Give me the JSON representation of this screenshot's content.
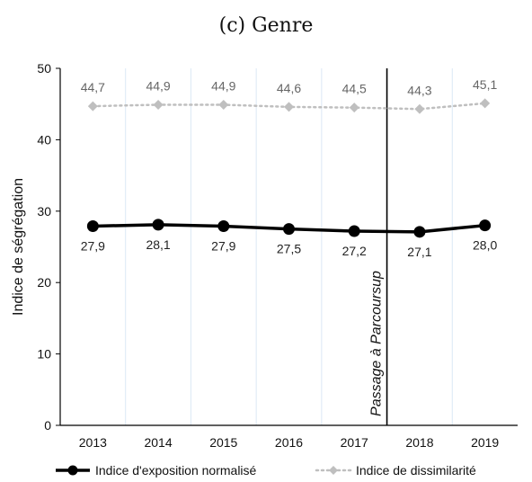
{
  "title": "(c) Genre",
  "chart_data": {
    "type": "line",
    "categories": [
      "2013",
      "2014",
      "2015",
      "2016",
      "2017",
      "2018",
      "2019"
    ],
    "ylabel": "Indice de ségrégation",
    "ylim": [
      0,
      50
    ],
    "yticks": [
      "0",
      "10",
      "20",
      "30",
      "40",
      "50"
    ],
    "grid": "vertical",
    "series": [
      {
        "name": "Indice d'exposition normalisé",
        "values": [
          27.9,
          28.1,
          27.9,
          27.5,
          27.2,
          27.1,
          28.0
        ],
        "labels": [
          "27,9",
          "28,1",
          "27,9",
          "27,5",
          "27,2",
          "27,1",
          "28,0"
        ],
        "color": "#000000",
        "style": "solid"
      },
      {
        "name": "Indice de dissimilarité",
        "values": [
          44.7,
          44.9,
          44.9,
          44.6,
          44.5,
          44.3,
          45.1
        ],
        "labels": [
          "44,7",
          "44,9",
          "44,9",
          "44,6",
          "44,5",
          "44,3",
          "45,1"
        ],
        "color": "#bfbfbf",
        "style": "dotted"
      }
    ],
    "annotation": {
      "text": "Passage à Parcoursup",
      "between": [
        "2017",
        "2018"
      ]
    },
    "legend_position": "bottom"
  }
}
